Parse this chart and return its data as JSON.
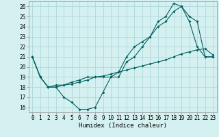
{
  "xlabel": "Humidex (Indice chaleur)",
  "bg_color": "#d4f0f0",
  "grid_color": "#b0d8d8",
  "line_color": "#006060",
  "xlim": [
    -0.5,
    23.5
  ],
  "ylim": [
    15.5,
    26.5
  ],
  "xticks": [
    0,
    1,
    2,
    3,
    4,
    5,
    6,
    7,
    8,
    9,
    10,
    11,
    12,
    13,
    14,
    15,
    16,
    17,
    18,
    19,
    20,
    21,
    22,
    23
  ],
  "yticks": [
    16,
    17,
    18,
    19,
    20,
    21,
    22,
    23,
    24,
    25,
    26
  ],
  "line1_x": [
    0,
    1,
    2,
    3,
    4,
    5,
    6,
    7,
    8,
    9,
    10,
    11,
    12,
    13,
    14,
    15,
    16,
    17,
    18,
    19,
    20,
    21,
    22,
    23
  ],
  "line1_y": [
    21,
    19,
    18,
    18,
    17,
    16.5,
    15.8,
    15.8,
    16,
    17.5,
    19,
    19,
    20.5,
    21,
    22,
    23,
    24.5,
    25,
    26.3,
    26,
    24.5,
    22,
    21,
    21
  ],
  "line2_x": [
    0,
    1,
    2,
    3,
    4,
    5,
    6,
    7,
    8,
    9,
    10,
    11,
    12,
    13,
    14,
    15,
    16,
    17,
    18,
    19,
    20,
    21,
    22,
    23
  ],
  "line2_y": [
    21,
    19,
    18,
    18.2,
    18.2,
    18.5,
    18.7,
    19,
    19,
    19,
    19,
    19.5,
    21,
    22,
    22.5,
    23,
    24,
    24.5,
    25.5,
    26,
    25,
    24.5,
    21,
    21
  ],
  "line3_x": [
    0,
    1,
    2,
    3,
    4,
    5,
    6,
    7,
    8,
    9,
    10,
    11,
    12,
    13,
    14,
    15,
    16,
    17,
    18,
    19,
    20,
    21,
    22,
    23
  ],
  "line3_y": [
    21,
    19,
    18,
    18,
    18.2,
    18.3,
    18.5,
    18.7,
    19,
    19.1,
    19.3,
    19.5,
    19.7,
    19.9,
    20.1,
    20.3,
    20.5,
    20.7,
    21,
    21.3,
    21.5,
    21.7,
    21.8,
    21.2
  ],
  "marker_size": 2.0,
  "line_width": 0.8,
  "tick_fontsize": 5.5,
  "xlabel_fontsize": 6.5
}
